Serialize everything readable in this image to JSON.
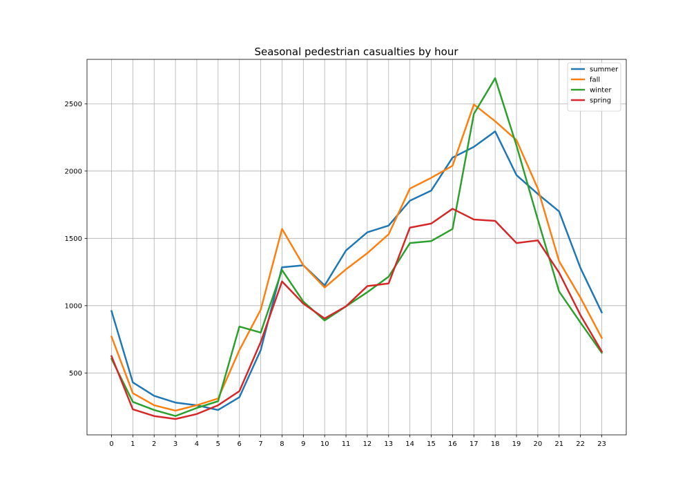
{
  "chart_data": {
    "type": "line",
    "title": "Seasonal pedestrian casualties by hour",
    "xlabel": "",
    "ylabel": "",
    "x": [
      0,
      1,
      2,
      3,
      4,
      5,
      6,
      7,
      8,
      9,
      10,
      11,
      12,
      13,
      14,
      15,
      16,
      17,
      18,
      19,
      20,
      21,
      22,
      23
    ],
    "x_ticks": [
      "0",
      "1",
      "2",
      "3",
      "4",
      "5",
      "6",
      "7",
      "8",
      "9",
      "10",
      "11",
      "12",
      "13",
      "14",
      "15",
      "16",
      "17",
      "18",
      "19",
      "20",
      "21",
      "22",
      "23"
    ],
    "y_ticks": [
      500,
      1000,
      1500,
      2000,
      2500
    ],
    "xlim": [
      -1.15,
      24.15
    ],
    "ylim": [
      40,
      2830
    ],
    "grid": true,
    "legend_position": "top-right",
    "series": [
      {
        "name": "summer",
        "color": "#1f77b4",
        "values": [
          960,
          430,
          330,
          280,
          260,
          225,
          320,
          670,
          1285,
          1300,
          1150,
          1410,
          1545,
          1595,
          1780,
          1855,
          2100,
          2180,
          2295,
          1970,
          1830,
          1700,
          1280,
          950
        ]
      },
      {
        "name": "fall",
        "color": "#ff7f0e",
        "values": [
          770,
          350,
          260,
          220,
          260,
          310,
          670,
          970,
          1570,
          1300,
          1135,
          1270,
          1390,
          1530,
          1870,
          1950,
          2040,
          2495,
          2370,
          2230,
          1870,
          1330,
          1060,
          760
        ]
      },
      {
        "name": "winter",
        "color": "#2ca02c",
        "values": [
          605,
          285,
          225,
          180,
          240,
          290,
          845,
          800,
          1265,
          1030,
          890,
          995,
          1100,
          1215,
          1465,
          1480,
          1570,
          2425,
          2690,
          2190,
          1640,
          1105,
          875,
          650
        ]
      },
      {
        "name": "spring",
        "color": "#d62728",
        "values": [
          625,
          230,
          180,
          158,
          195,
          260,
          365,
          730,
          1180,
          1015,
          905,
          995,
          1145,
          1165,
          1580,
          1610,
          1720,
          1640,
          1630,
          1465,
          1485,
          1245,
          930,
          660
        ]
      }
    ]
  }
}
